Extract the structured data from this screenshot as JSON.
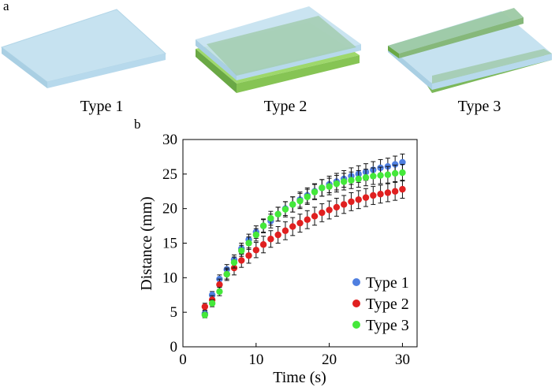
{
  "panels": {
    "a": "a",
    "b": "b"
  },
  "illustration": {
    "captions": [
      "Type 1",
      "Type 2",
      "Type 3"
    ],
    "colors": {
      "glass": "#c6e2f0",
      "glass_edge": "#a9cfe3",
      "green_layer": "#9ed86b",
      "green_edge": "#6aa845",
      "overlap": "#a3ccb0"
    }
  },
  "chart_data": {
    "type": "scatter",
    "title": "",
    "xlabel": "Time (s)",
    "ylabel": "Distance (mm)",
    "xlim": [
      0,
      32
    ],
    "ylim": [
      0,
      30
    ],
    "xticks": [
      0,
      10,
      20,
      30
    ],
    "yticks": [
      0,
      5,
      10,
      15,
      20,
      25,
      30
    ],
    "legend_position": "bottom-right",
    "x": [
      3,
      4,
      5,
      6,
      7,
      8,
      9,
      10,
      11,
      12,
      13,
      14,
      15,
      16,
      17,
      18,
      19,
      20,
      21,
      22,
      23,
      24,
      25,
      26,
      27,
      28,
      29,
      30
    ],
    "series": [
      {
        "name": "Type 1",
        "color": "#4f7fe0",
        "values": [
          4.8,
          7.5,
          9.8,
          11.2,
          12.6,
          14.2,
          15.5,
          16.6,
          17.5,
          18.2,
          19.2,
          20.0,
          20.6,
          21.3,
          21.9,
          22.5,
          23.0,
          23.5,
          23.9,
          24.3,
          24.7,
          25.0,
          25.3,
          25.6,
          25.9,
          26.1,
          26.4,
          26.7
        ],
        "errors": [
          0.4,
          0.5,
          0.6,
          0.7,
          0.7,
          0.8,
          0.8,
          0.9,
          0.9,
          1.0,
          1.0,
          1.0,
          1.1,
          1.1,
          1.1,
          1.1,
          1.2,
          1.2,
          1.2,
          1.2,
          1.2,
          1.2,
          1.2,
          1.2,
          1.2,
          1.2,
          1.2,
          1.2
        ]
      },
      {
        "name": "Type 2",
        "color": "#e02020",
        "values": [
          5.8,
          6.8,
          9.0,
          10.5,
          11.4,
          12.5,
          13.2,
          14.0,
          14.8,
          15.6,
          16.2,
          16.8,
          17.4,
          17.9,
          18.4,
          18.9,
          19.4,
          19.8,
          20.2,
          20.6,
          21.0,
          21.3,
          21.6,
          21.9,
          22.1,
          22.3,
          22.5,
          22.8
        ],
        "errors": [
          0.5,
          0.6,
          0.8,
          0.9,
          1.0,
          1.0,
          1.1,
          1.1,
          1.2,
          1.2,
          1.2,
          1.3,
          1.3,
          1.3,
          1.3,
          1.3,
          1.3,
          1.3,
          1.3,
          1.3,
          1.3,
          1.3,
          1.3,
          1.3,
          1.3,
          1.3,
          1.3,
          1.3
        ]
      },
      {
        "name": "Type 3",
        "color": "#44e83a",
        "values": [
          4.6,
          6.3,
          8.0,
          10.5,
          12.2,
          13.9,
          15.0,
          16.2,
          17.5,
          18.6,
          19.2,
          19.9,
          20.6,
          21.1,
          21.7,
          22.4,
          23.0,
          23.2,
          23.6,
          23.9,
          24.1,
          24.3,
          24.5,
          24.7,
          24.8,
          24.9,
          25.1,
          25.2
        ],
        "errors": [
          0.4,
          0.5,
          0.6,
          0.7,
          0.8,
          0.8,
          0.9,
          0.9,
          1.0,
          1.0,
          1.0,
          1.1,
          1.1,
          1.1,
          1.1,
          1.1,
          1.2,
          1.2,
          1.2,
          1.2,
          1.2,
          1.2,
          1.2,
          1.2,
          1.2,
          1.2,
          1.2,
          1.2
        ]
      }
    ]
  }
}
